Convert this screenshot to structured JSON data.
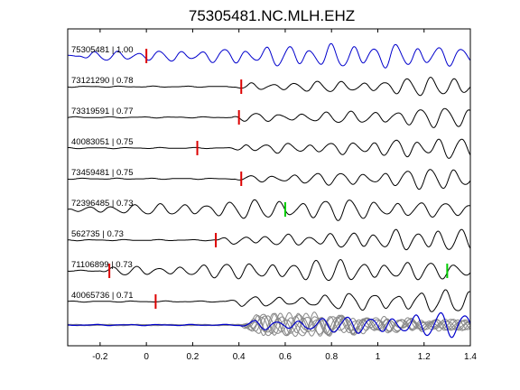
{
  "chart_data": {
    "type": "line",
    "title": "75305481.NC.MLH.EHZ",
    "xlabel": "",
    "ylabel": "",
    "xlim": [
      -0.34,
      1.4
    ],
    "xticks": [
      -0.2,
      0,
      0.2,
      0.4,
      0.6,
      0.8,
      1,
      1.2,
      1.4
    ],
    "xtick_labels": [
      "-0.2",
      "0",
      "0.2",
      "0.4",
      "0.6",
      "0.8",
      "1",
      "1.2",
      "1.4"
    ],
    "grid": false,
    "colors": {
      "reference": "#0000cc",
      "trace": "#000000",
      "stack": "#888888",
      "pick_red": "#dd0000",
      "pick_green": "#00cc00"
    },
    "series": [
      {
        "name": "75305481 | 1.00",
        "color": "#0000cc",
        "onset": -0.3,
        "amplitude": 0.85,
        "picks": [
          {
            "x": 0.0,
            "color": "#dd0000"
          }
        ]
      },
      {
        "name": "73121290 | 0.78",
        "color": "#000000",
        "onset": 0.38,
        "amplitude": 0.8,
        "picks": [
          {
            "x": 0.41,
            "color": "#dd0000"
          }
        ]
      },
      {
        "name": "73319591 | 0.77",
        "color": "#000000",
        "onset": 0.37,
        "amplitude": 0.8,
        "picks": [
          {
            "x": 0.4,
            "color": "#dd0000"
          }
        ]
      },
      {
        "name": "40083051 | 0.75",
        "color": "#000000",
        "onset": 0.36,
        "amplitude": 0.8,
        "picks": [
          {
            "x": 0.22,
            "color": "#dd0000"
          }
        ]
      },
      {
        "name": "73459481 | 0.75",
        "color": "#000000",
        "onset": 0.38,
        "amplitude": 0.8,
        "picks": [
          {
            "x": 0.41,
            "color": "#dd0000"
          }
        ]
      },
      {
        "name": "72396485 | 0.73",
        "color": "#000000",
        "onset": -0.34,
        "amplitude": 0.75,
        "picks": [
          {
            "x": 0.6,
            "color": "#00cc00"
          }
        ]
      },
      {
        "name": "562735 | 0.73",
        "color": "#000000",
        "onset": 0.3,
        "amplitude": 0.8,
        "picks": [
          {
            "x": 0.3,
            "color": "#dd0000"
          }
        ]
      },
      {
        "name": "71106899 | 0.73",
        "color": "#000000",
        "onset": -0.2,
        "amplitude": 0.75,
        "picks": [
          {
            "x": -0.16,
            "color": "#dd0000"
          },
          {
            "x": 1.3,
            "color": "#00cc00"
          }
        ]
      },
      {
        "name": "40065736 | 0.71",
        "color": "#000000",
        "onset": 0.34,
        "amplitude": 0.8,
        "picks": [
          {
            "x": 0.04,
            "color": "#dd0000"
          }
        ]
      }
    ],
    "stack": {
      "colors": [
        "#888888",
        "#0000cc"
      ],
      "amplitude": 0.9
    }
  }
}
